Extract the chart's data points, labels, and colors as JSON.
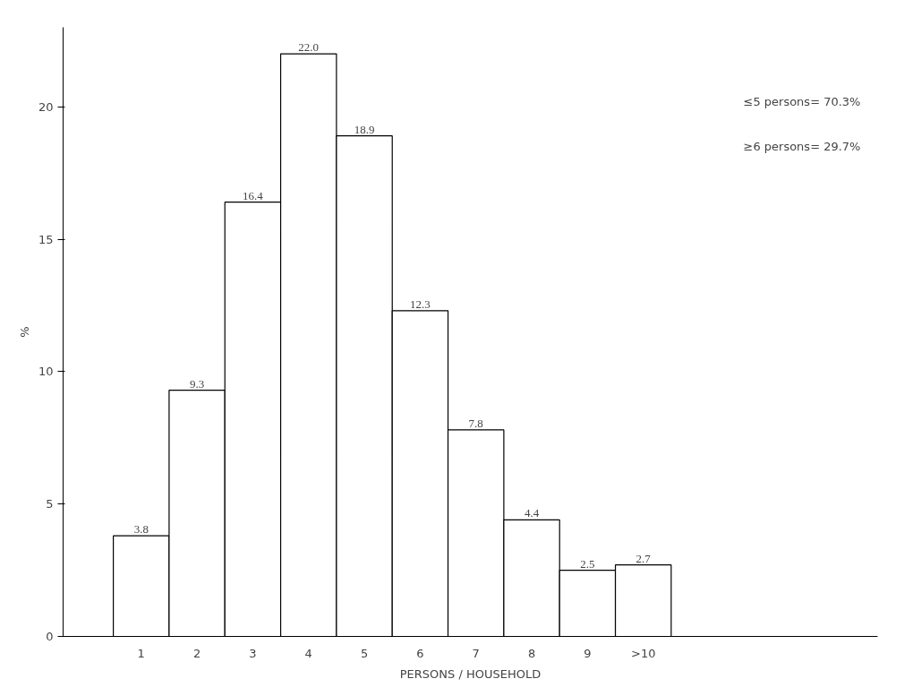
{
  "chart_data": {
    "type": "bar",
    "ylabel": "%",
    "xlabel": "PERSONS / HOUSEHOLD",
    "categories": [
      "1",
      "2",
      "3",
      "4",
      "5",
      "6",
      "7",
      "8",
      "9",
      ">10"
    ],
    "values": [
      3.8,
      9.3,
      16.4,
      22.0,
      18.9,
      12.3,
      7.8,
      4.4,
      2.5,
      2.7
    ],
    "value_labels": [
      "3.8",
      "9.3",
      "16.4",
      "22.0",
      "18.9",
      "12.3",
      "7.8",
      "4.4",
      "2.5",
      "2.7"
    ],
    "color": "#ffffff",
    "ylim": [
      0,
      23
    ],
    "yticks": [
      0,
      5,
      10,
      15,
      20
    ],
    "grid": false,
    "annotations": [
      "≤5 persons= 70.3%",
      "≥6 persons= 29.7%"
    ]
  }
}
